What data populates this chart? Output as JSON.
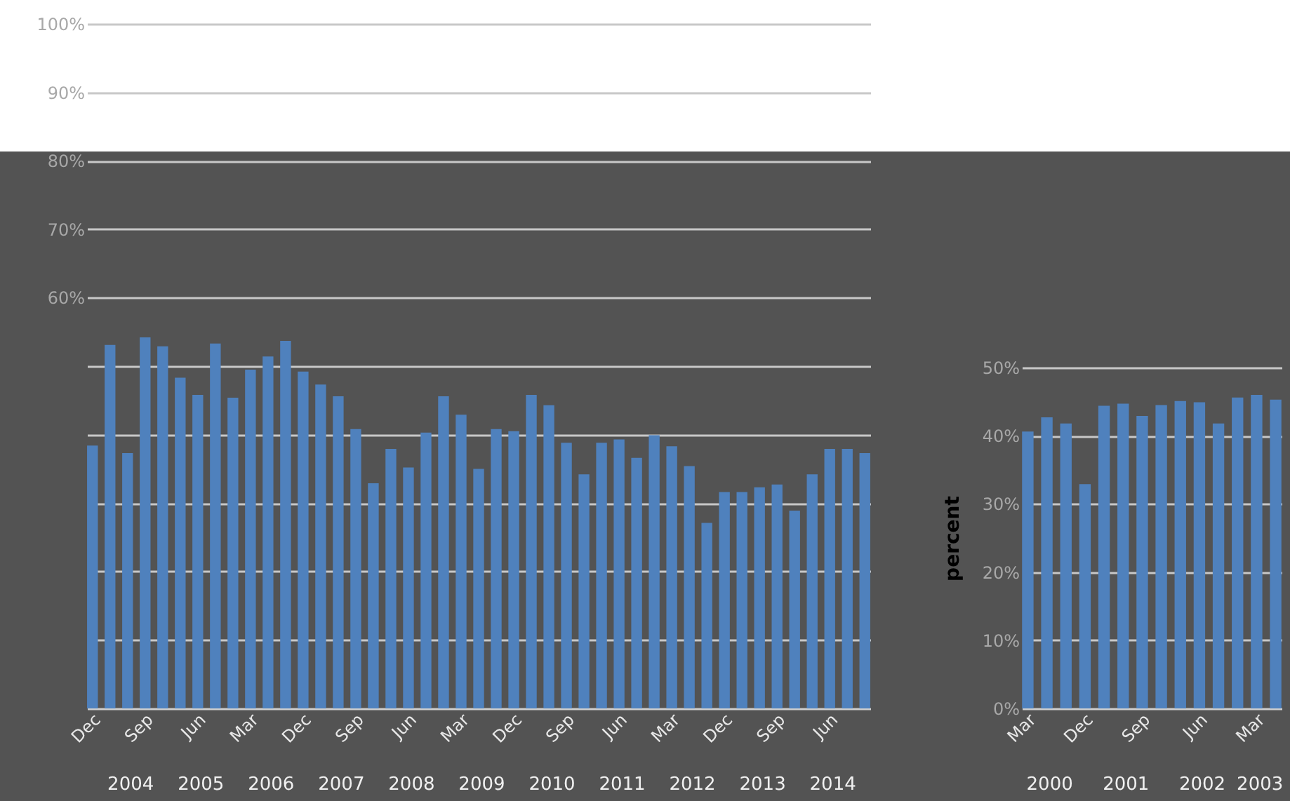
{
  "chart_data": [
    {
      "type": "bar",
      "categories": [
        "Dec",
        null,
        null,
        "Sep",
        null,
        null,
        "Jun",
        null,
        null,
        "Mar",
        null,
        null,
        "Dec",
        null,
        null,
        "Sep",
        null,
        null,
        "Jun",
        null,
        null,
        "Mar",
        null,
        null,
        "Dec",
        null,
        null,
        "Sep",
        null,
        null,
        "Jun",
        null,
        null,
        "Mar",
        null,
        null,
        "Dec",
        null,
        null,
        "Sep",
        null,
        null,
        "Jun",
        null,
        null
      ],
      "values": [
        38.4,
        53.1,
        37.3,
        54.2,
        52.9,
        48.3,
        45.8,
        53.3,
        45.4,
        49.5,
        51.4,
        53.7,
        49.2,
        47.3,
        45.6,
        40.8,
        32.9,
        37.9,
        35.2,
        40.3,
        45.6,
        42.9,
        35.0,
        40.8,
        40.5,
        45.8,
        44.3,
        38.8,
        34.2,
        38.8,
        39.3,
        36.6,
        39.9,
        38.3,
        35.4,
        27.1,
        31.6,
        31.6,
        32.3,
        32.7,
        28.9,
        34.2,
        37.9,
        37.9,
        37.3
      ],
      "color": "#4f81bd",
      "ylim": [
        0,
        100
      ],
      "yticks": [
        {
          "value": 0,
          "label": null
        },
        {
          "value": 10,
          "label": null
        },
        {
          "value": 20,
          "label": null
        },
        {
          "value": 30,
          "label": null
        },
        {
          "value": 40,
          "label": null
        },
        {
          "value": 50,
          "label": null
        },
        {
          "value": 60,
          "label": "60%"
        },
        {
          "value": 70,
          "label": "70%"
        },
        {
          "value": 80,
          "label": "80%"
        },
        {
          "value": 90,
          "label": "90%"
        },
        {
          "value": 100,
          "label": "100%"
        }
      ],
      "grid": "y",
      "annotations": [
        "2004",
        "2005",
        "2006",
        "2007",
        "2008",
        "2009",
        "2010",
        "2011",
        "2012",
        "2013",
        "2014"
      ]
    },
    {
      "type": "bar",
      "ylabel": "percent",
      "categories": [
        "Mar",
        null,
        null,
        "Dec",
        null,
        null,
        "Sep",
        null,
        null,
        "Jun",
        null,
        null,
        "Mar",
        null
      ],
      "values": [
        40.6,
        42.7,
        41.8,
        32.9,
        44.4,
        44.7,
        42.9,
        44.5,
        45.1,
        44.9,
        41.8,
        45.6,
        46.0,
        45.3
      ],
      "color": "#4f81bd",
      "ylim": [
        0,
        50
      ],
      "yticks": [
        {
          "value": 0,
          "label": "0%"
        },
        {
          "value": 10,
          "label": "10%"
        },
        {
          "value": 20,
          "label": "20%"
        },
        {
          "value": 30,
          "label": "30%"
        },
        {
          "value": 40,
          "label": "40%"
        },
        {
          "value": 50,
          "label": "50%"
        }
      ],
      "grid": "y",
      "annotations": [
        "2000",
        "2001",
        "2002",
        "2003"
      ]
    }
  ]
}
